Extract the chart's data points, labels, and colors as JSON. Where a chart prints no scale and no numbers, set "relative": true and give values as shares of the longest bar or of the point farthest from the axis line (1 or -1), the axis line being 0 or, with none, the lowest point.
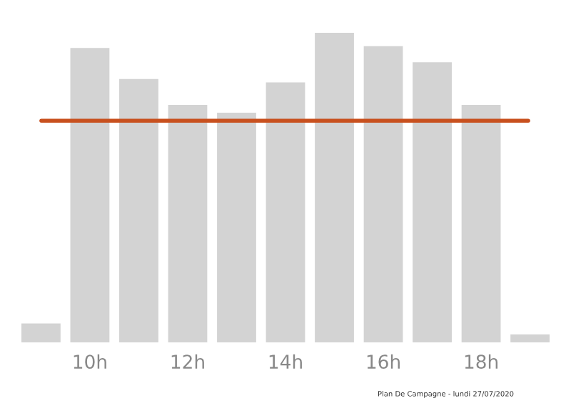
{
  "chart_data": {
    "type": "bar",
    "relative": true,
    "categories": [
      null,
      "10h",
      null,
      "12h",
      null,
      "14h",
      null,
      "16h",
      null,
      "18h",
      null
    ],
    "values": [
      0.061,
      0.951,
      0.851,
      0.767,
      0.742,
      0.84,
      1,
      0.957,
      0.905,
      0.767,
      0.026
    ],
    "color": "#d3d3d3",
    "ref_lines": [
      {
        "axis": "y",
        "value": 0.716,
        "color": "#c8501e"
      }
    ],
    "grid": false,
    "annotations": [
      "Plan De Campagne - lundi 27/07/2020"
    ]
  }
}
